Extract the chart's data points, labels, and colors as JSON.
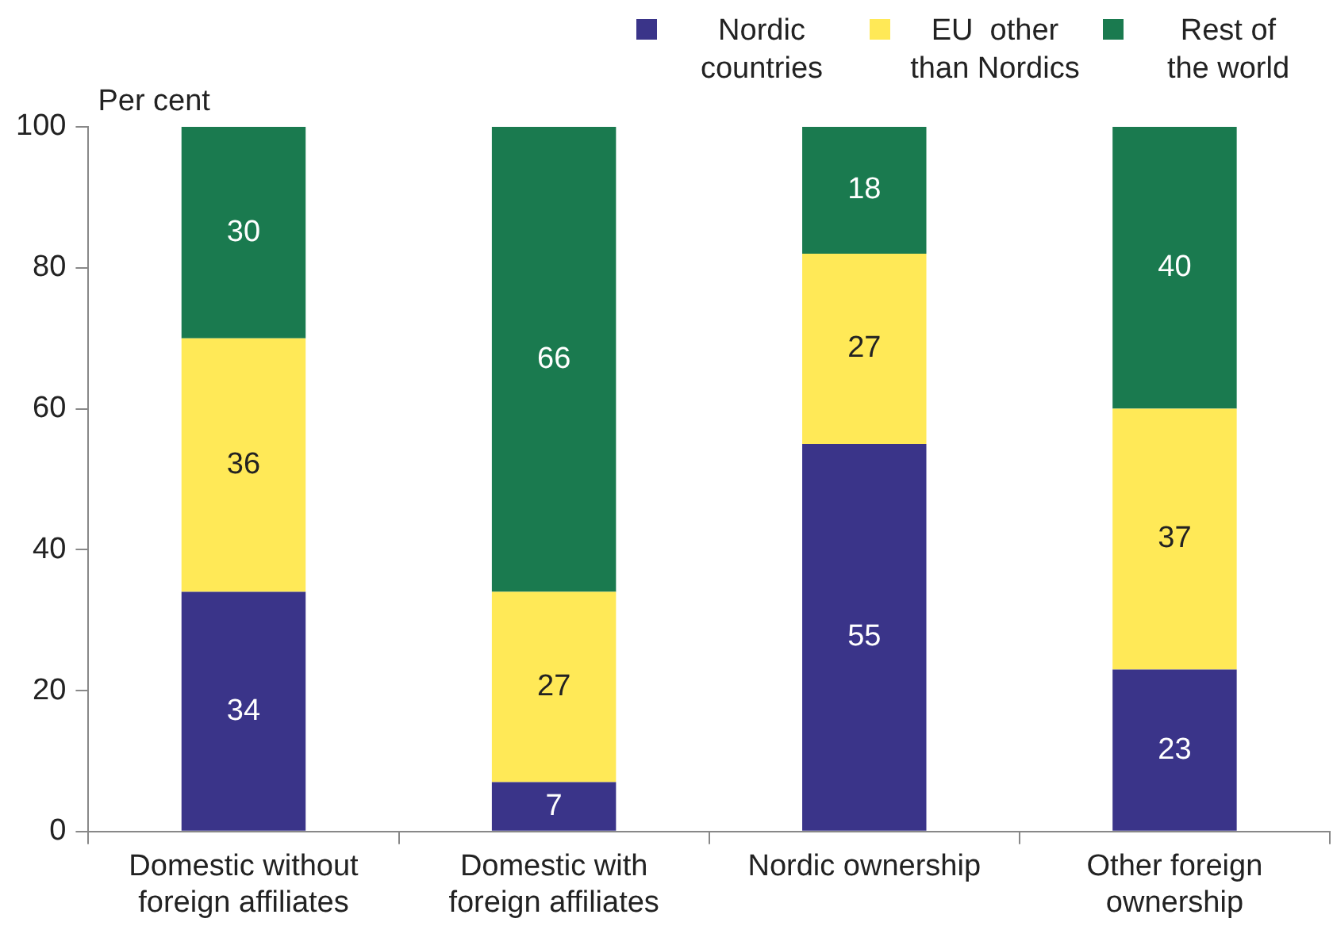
{
  "chart_data": {
    "type": "bar",
    "stacked": true,
    "ylabel": "Per cent",
    "categories": [
      "Domestic without foreign affiliates",
      "Domestic with foreign affiliates",
      "Nordic ownership",
      "Other foreign ownership"
    ],
    "series": [
      {
        "name": "Nordic countries",
        "color": "#3a3489",
        "values": [
          34,
          7,
          55,
          23
        ]
      },
      {
        "name": "EU  other than Nordics",
        "color": "#ffe957",
        "values": [
          36,
          27,
          27,
          37
        ]
      },
      {
        "name": "Rest of the world",
        "color": "#1a7a4f",
        "values": [
          30,
          66,
          18,
          40
        ]
      }
    ],
    "ylim": [
      0,
      100
    ],
    "yticks": [
      0,
      20,
      40,
      60,
      80,
      100
    ],
    "data_labels": true,
    "legend": "top right",
    "grid": false
  }
}
